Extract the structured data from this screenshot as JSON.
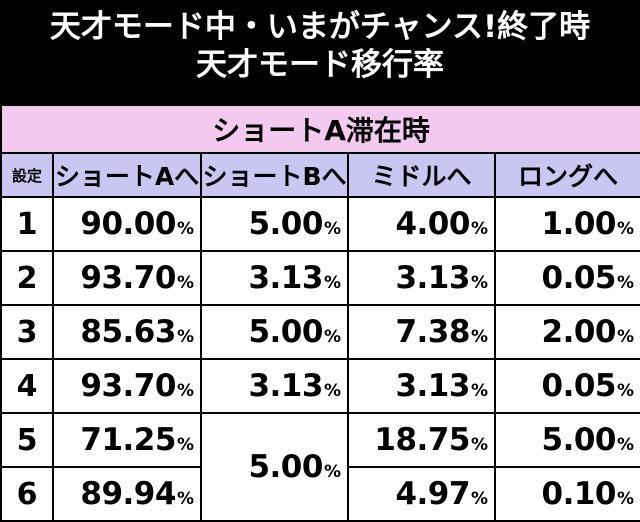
{
  "title": {
    "line1": "天才モード中・いまがチャンス!終了時",
    "line2": "天才モード移行率"
  },
  "table": {
    "section_label": "ショートA滞在時",
    "corner_label": "設定",
    "columns": [
      "ショートAへ",
      "ショートBへ",
      "ミドルへ",
      "ロングへ"
    ],
    "percent_sign": "%",
    "rows": [
      {
        "setting": "1",
        "values": [
          "90.00",
          "5.00",
          "4.00",
          "1.00"
        ]
      },
      {
        "setting": "2",
        "values": [
          "93.70",
          "3.13",
          "3.13",
          "0.05"
        ]
      },
      {
        "setting": "3",
        "values": [
          "85.63",
          "5.00",
          "7.38",
          "2.00"
        ]
      },
      {
        "setting": "4",
        "values": [
          "93.70",
          "3.13",
          "3.13",
          "0.05"
        ]
      },
      {
        "setting": "5",
        "values": [
          "71.25",
          "5.00",
          "18.75",
          "5.00"
        ]
      },
      {
        "setting": "6",
        "values": [
          "89.94",
          "5.00",
          "4.97",
          "0.10"
        ]
      }
    ]
  },
  "colors": {
    "background": "#000000",
    "section_header": "#f4c9ef",
    "column_header": "#c9c6f2",
    "cell": "#ffffff"
  }
}
